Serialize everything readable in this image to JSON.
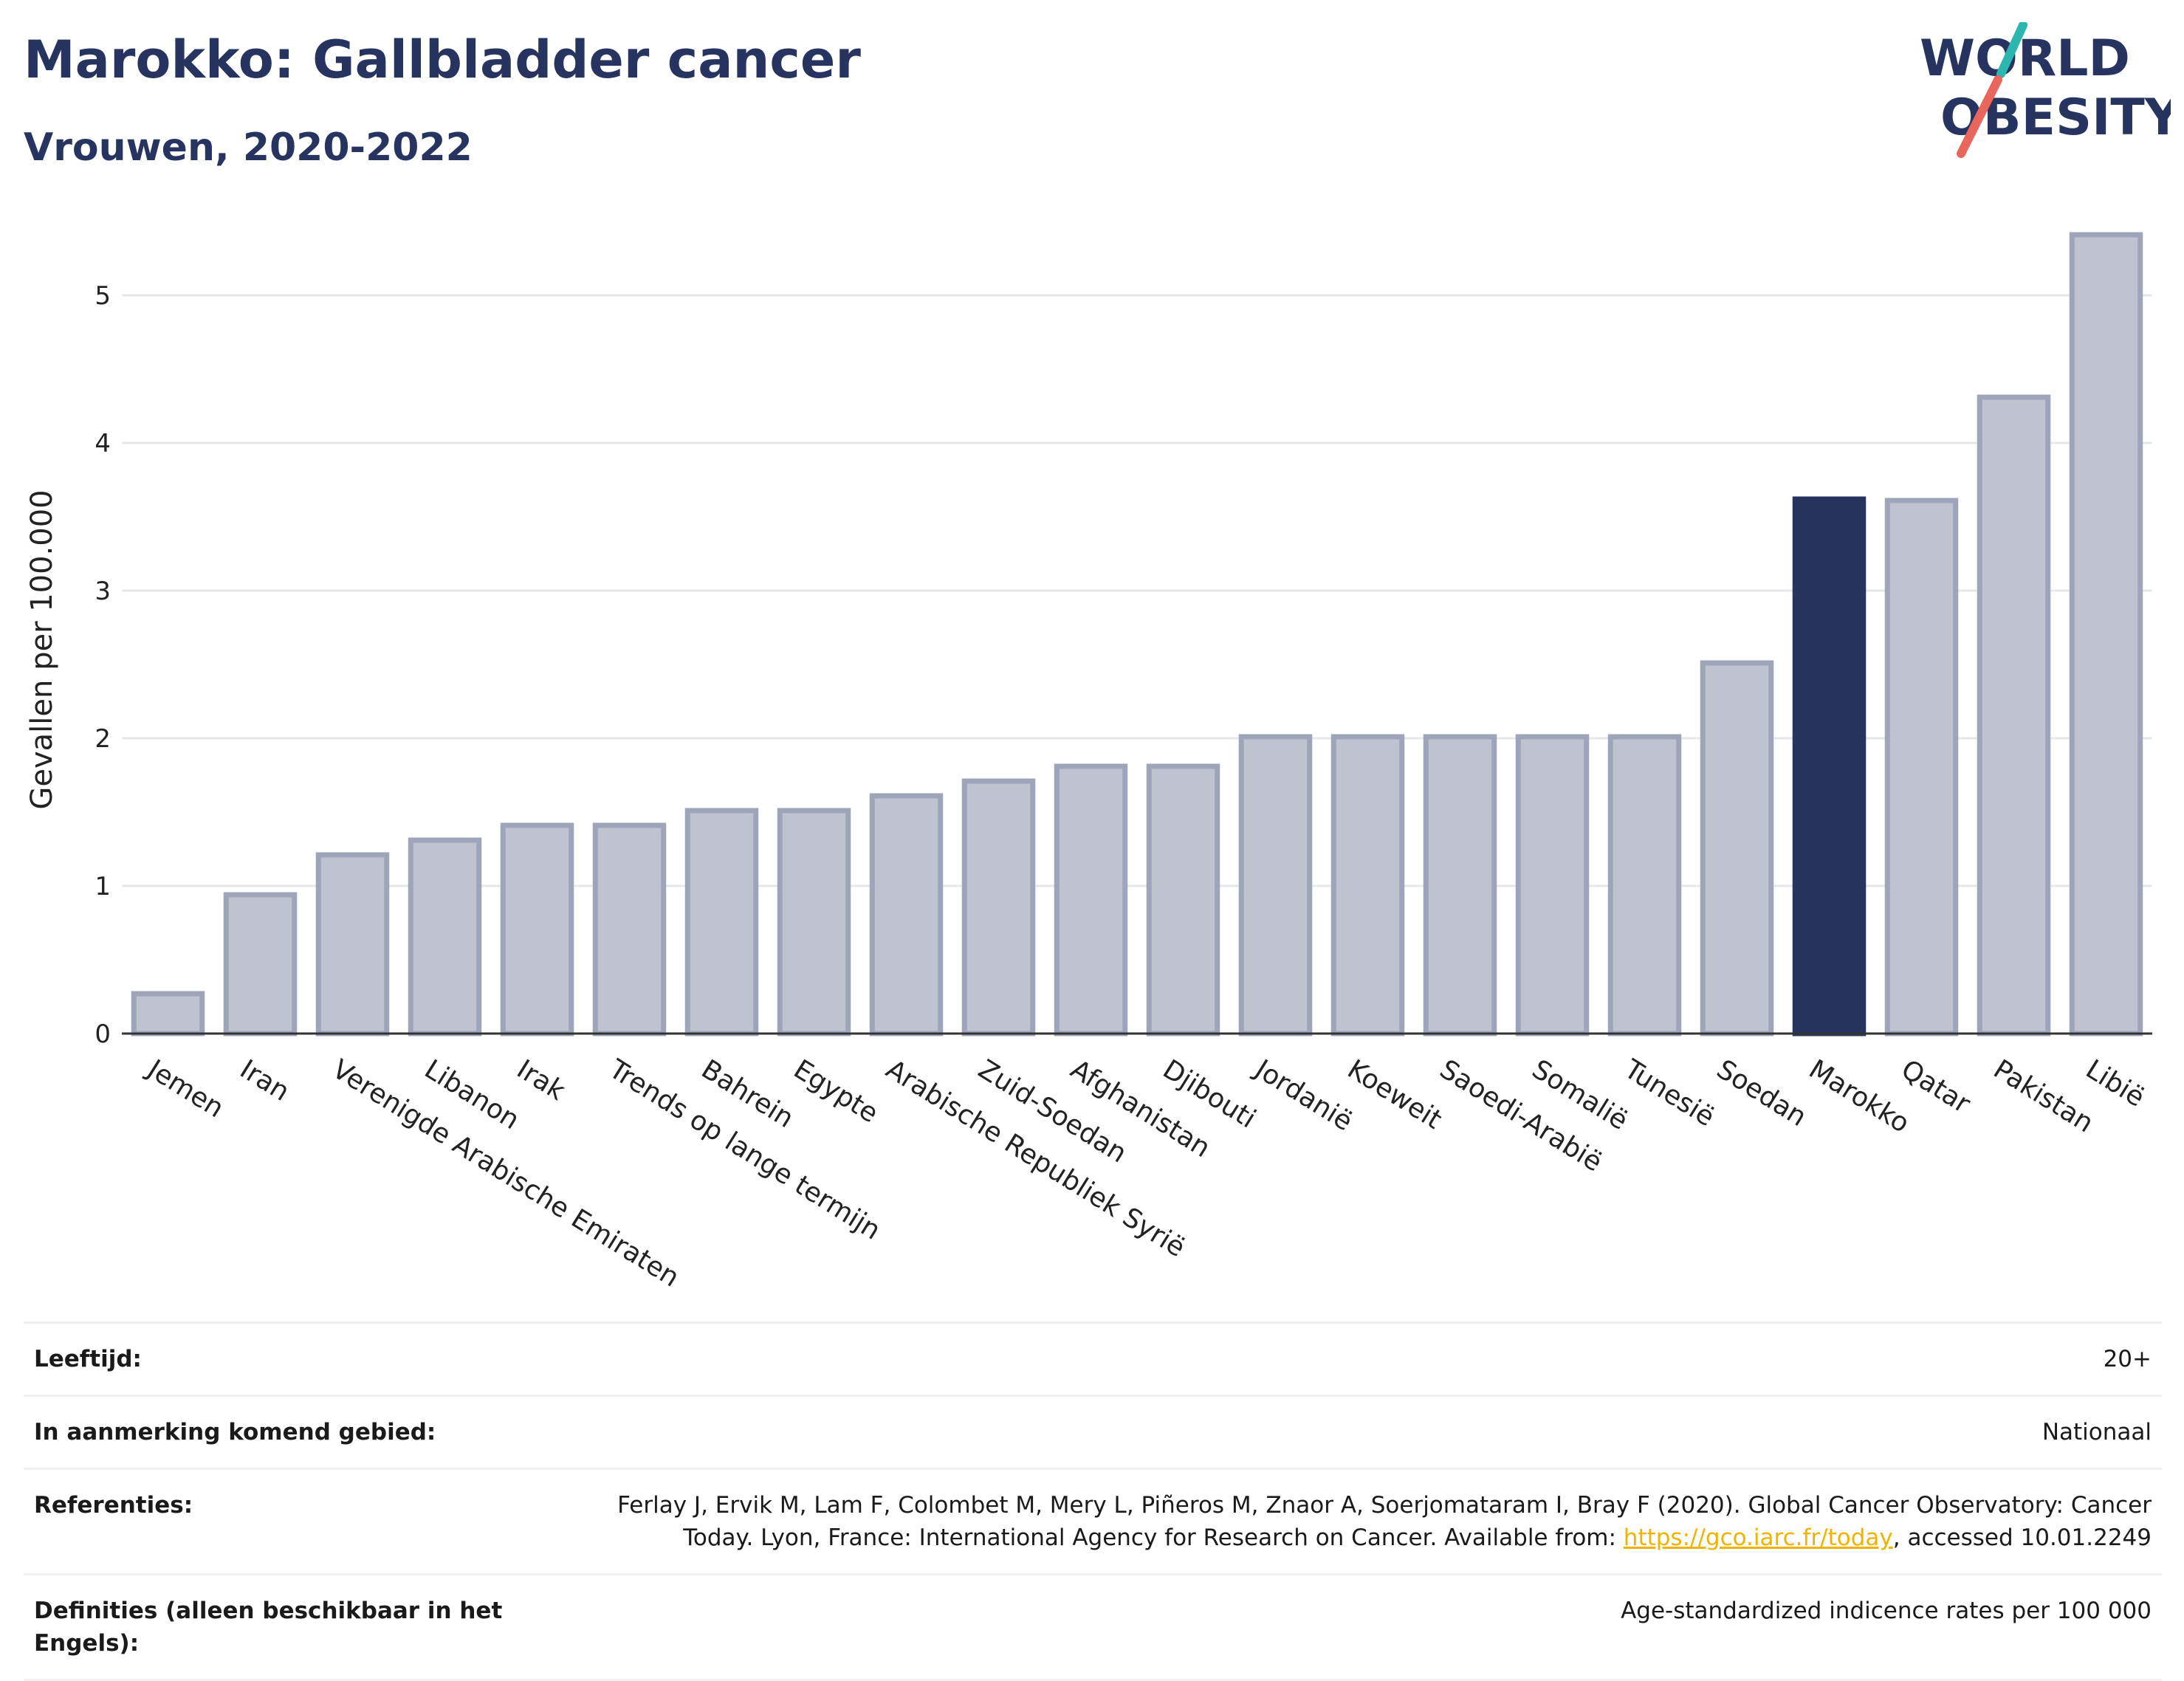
{
  "header": {
    "title": "Marokko: Gallbladder cancer",
    "subtitle": "Vrouwen, 2020-2022"
  },
  "logo": {
    "line1": "WORLD",
    "line2": "OBESITY",
    "colors": {
      "text": "#283460",
      "slash_top": "#2bb6b0",
      "slash_bottom": "#e8665c"
    }
  },
  "colors": {
    "bar": "#bfc3d0",
    "bar_border": "#9ea4ba",
    "highlight": "#283460",
    "grid": "#e6e8ee",
    "axis": "#333333"
  },
  "chart_data": {
    "type": "bar",
    "ylabel": "Gevallen per 100.000",
    "xlabel": "",
    "ylim": [
      0,
      5.6
    ],
    "yticks": [
      0,
      1,
      2,
      3,
      4,
      5
    ],
    "grid": true,
    "highlight": "Marokko",
    "categories": [
      "Jemen",
      "Iran",
      "Verenigde Arabische Emiraten",
      "Libanon",
      "Irak",
      "Trends op lange termijn",
      "Bahrein",
      "Egypte",
      "Arabische Republiek Syrië",
      "Zuid-Soedan",
      "Afghanistan",
      "Djibouti",
      "Jordanië",
      "Koeweit",
      "Saoedi-Arabië",
      "Somalië",
      "Tunesië",
      "Soedan",
      "Marokko",
      "Qatar",
      "Pakistan",
      "Libië"
    ],
    "values": [
      0.27,
      0.94,
      1.21,
      1.31,
      1.41,
      1.41,
      1.51,
      1.51,
      1.61,
      1.71,
      1.81,
      1.81,
      2.01,
      2.01,
      2.01,
      2.01,
      2.01,
      2.51,
      3.62,
      3.61,
      4.31,
      5.41
    ]
  },
  "meta": [
    {
      "label": "Leeftijd:",
      "value": "20+"
    },
    {
      "label": "In aanmerking komend gebied:",
      "value": "Nationaal"
    },
    {
      "label": "Referenties:",
      "value_before": "Ferlay J, Ervik M, Lam F, Colombet M, Mery L, Piñeros M, Znaor A, Soerjomataram I, Bray F (2020). Global Cancer Observatory: Cancer Today. Lyon, France: International Agency for Research on Cancer. Available from: ",
      "link": "https://gco.iarc.fr/today",
      "value_after": ", accessed 10.01.2249"
    },
    {
      "label": "Definities (alleen beschikbaar in het Engels):",
      "value": "Age-standardized indicence rates per 100 000"
    }
  ]
}
